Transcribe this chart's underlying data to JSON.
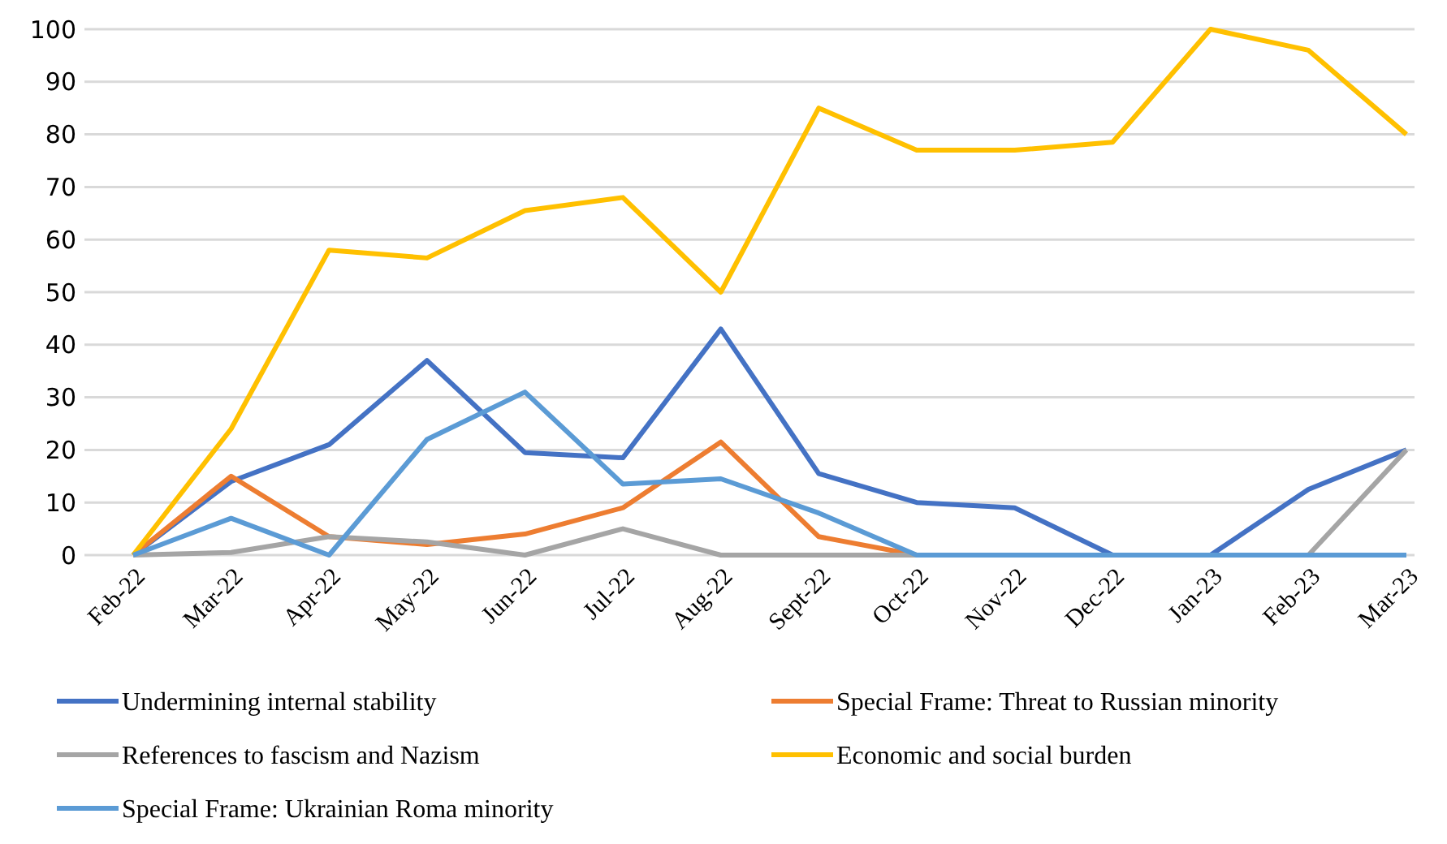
{
  "chart_data": {
    "type": "line",
    "categories": [
      "Feb-22",
      "Mar-22",
      "Apr-22",
      "May-22",
      "Jun-22",
      "Jul-22",
      "Aug-22",
      "Sept-22",
      "Oct-22",
      "Nov-22",
      "Dec-22",
      "Jan-23",
      "Feb-23",
      "Mar-23"
    ],
    "series": [
      {
        "name": "Undermining internal stability",
        "color": "#4472c4",
        "values": [
          0,
          14,
          21,
          37,
          19.5,
          18.5,
          43,
          15.5,
          10,
          9,
          0,
          0,
          12.5,
          20
        ]
      },
      {
        "name": "Special Frame: Threat to Russian minority",
        "color": "#ed7d31",
        "values": [
          0,
          15,
          3.5,
          2,
          4,
          9,
          21.5,
          3.5,
          0,
          0,
          null,
          null,
          null,
          null
        ]
      },
      {
        "name": "References to fascism and Nazism",
        "color": "#a5a5a5",
        "values": [
          0,
          0.5,
          3.5,
          2.5,
          0,
          5,
          0,
          0,
          0,
          0,
          0,
          0,
          0,
          20
        ]
      },
      {
        "name": "Economic and social burden",
        "color": "#ffc000",
        "values": [
          0,
          24,
          58,
          56.5,
          65.5,
          68,
          50,
          85,
          77,
          77,
          78.5,
          100,
          96,
          80
        ]
      },
      {
        "name": "Special Frame: Ukrainian Roma minority",
        "color": "#5b9bd5",
        "values": [
          0,
          7,
          0,
          22,
          31,
          13.5,
          14.5,
          8,
          0,
          0,
          0,
          0,
          0,
          0
        ]
      }
    ],
    "ylim": [
      0,
      100
    ],
    "yticks": [
      0,
      10,
      20,
      30,
      40,
      50,
      60,
      70,
      80,
      90,
      100
    ],
    "grid": "y",
    "legend": "bottom",
    "marker": "none",
    "line_style": "solid"
  }
}
